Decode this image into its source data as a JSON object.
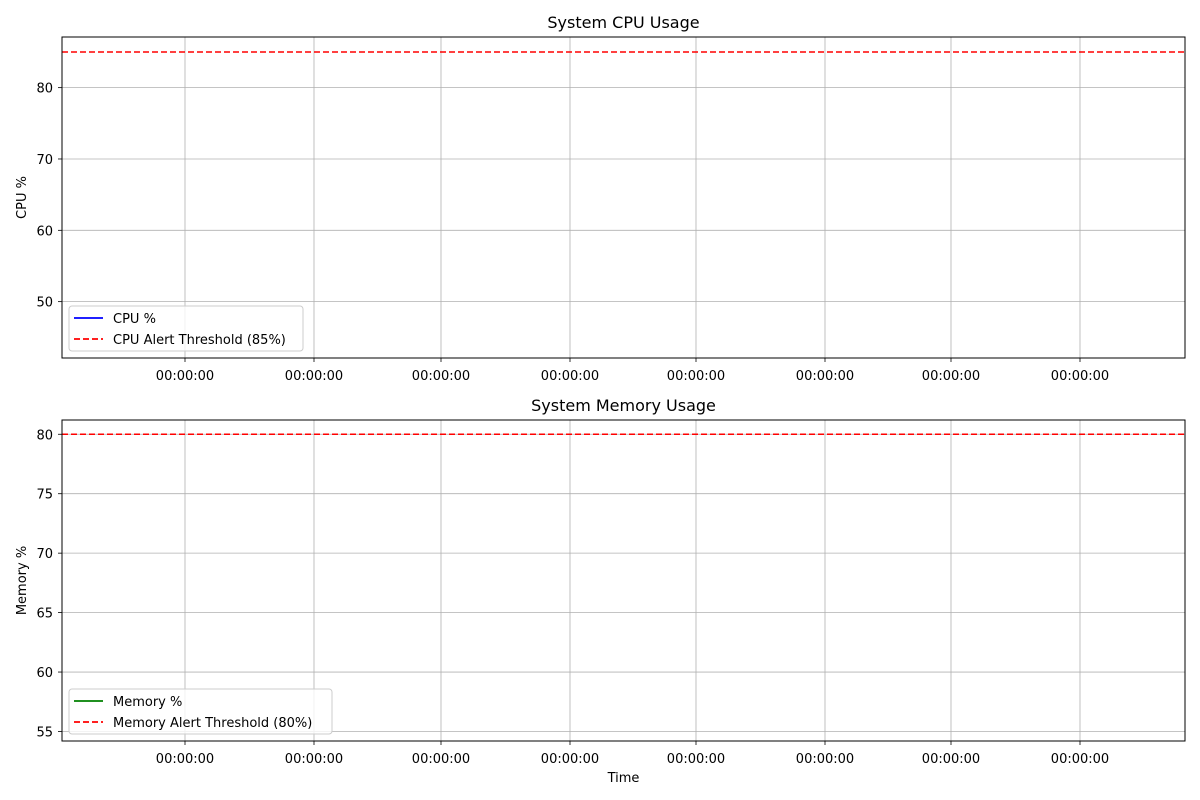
{
  "chart_data": [
    {
      "type": "line",
      "title": "System CPU Usage",
      "xlabel": "",
      "ylabel": "CPU %",
      "x_tick_labels": [
        "00:00:00",
        "00:00:00",
        "00:00:00",
        "00:00:00",
        "00:00:00",
        "00:00:00",
        "00:00:00",
        "00:00:00"
      ],
      "y_ticks": [
        50,
        60,
        70,
        80
      ],
      "ylim": [
        42.1,
        87.1
      ],
      "grid": true,
      "legend_position": "lower-left",
      "series": [
        {
          "name": "CPU %",
          "color": "#0000ff",
          "style": "solid",
          "values": []
        },
        {
          "name": "CPU Alert Threshold (85%)",
          "color": "#ff0000",
          "style": "dashed",
          "value": 85
        }
      ]
    },
    {
      "type": "line",
      "title": "System Memory Usage",
      "xlabel": "Time",
      "ylabel": "Memory %",
      "x_tick_labels": [
        "00:00:00",
        "00:00:00",
        "00:00:00",
        "00:00:00",
        "00:00:00",
        "00:00:00",
        "00:00:00",
        "00:00:00"
      ],
      "y_ticks": [
        55,
        60,
        65,
        70,
        75,
        80
      ],
      "ylim": [
        54.2,
        81.2
      ],
      "grid": true,
      "legend_position": "lower-left",
      "series": [
        {
          "name": "Memory %",
          "color": "#008000",
          "style": "solid",
          "values": []
        },
        {
          "name": "Memory Alert Threshold (80%)",
          "color": "#ff0000",
          "style": "dashed",
          "value": 80
        }
      ]
    }
  ]
}
